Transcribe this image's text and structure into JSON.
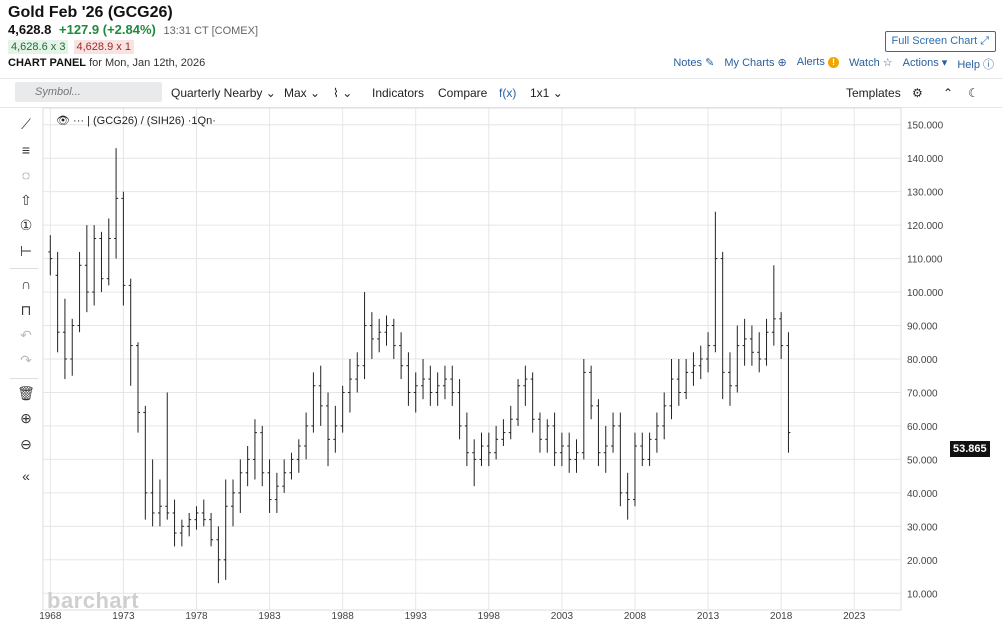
{
  "header": {
    "title": "Gold Feb '26 (GCG26)",
    "last": "4,628.8",
    "change": "+127.9 (+2.84%)",
    "time": "13:31 CT [COMEX]",
    "bid": "4,628.6 x 3",
    "ask": "4,628.9 x 1",
    "panel_label": "CHART PANEL",
    "panel_date": "for Mon, Jan 12th, 2026",
    "full_screen": "Full Screen Chart"
  },
  "links": {
    "notes": "Notes",
    "my_charts": "My Charts",
    "alerts": "Alerts",
    "alert_badge": "!",
    "watch": "Watch",
    "actions": "Actions",
    "help": "Help"
  },
  "toolbar": {
    "symbol_placeholder": "Symbol...",
    "aggregation": "Quarterly Nearby",
    "range": "Max",
    "chart_type_glyph": "⌇",
    "indicators": "Indicators",
    "compare": "Compare",
    "fx": "f(x)",
    "layout": "1x1",
    "templates": "Templates"
  },
  "chart_legend": "(GCG26) / (SIH26) ·1Qn·",
  "watermark": "barchart",
  "last_value_tag": "53.865",
  "colors": {
    "bars": "#222222",
    "grid": "#e6e6e6",
    "link": "#2a5f9e",
    "up": "#1f8a3b"
  },
  "chart_data": {
    "type": "ohlc",
    "title": "(GCG26) / (SIH26)",
    "ylim": [
      5,
      155
    ],
    "y_ticks": [
      10,
      20,
      30,
      40,
      50,
      60,
      70,
      80,
      90,
      100,
      110,
      120,
      130,
      140,
      150
    ],
    "y_tick_labels": [
      "10.000",
      "20.000",
      "30.000",
      "40.000",
      "50.000",
      "60.000",
      "70.000",
      "80.000",
      "90.000",
      "100.000",
      "110.000",
      "120.000",
      "130.000",
      "140.000",
      "150.000"
    ],
    "x_tick_labels": [
      "1968",
      "1973",
      "1978",
      "1983",
      "1988",
      "1993",
      "1998",
      "2003",
      "2008",
      "2013",
      "2018",
      "2023"
    ],
    "xlim": [
      1967.5,
      2026.2
    ],
    "points": [
      [
        1968.0,
        112,
        117,
        105,
        110
      ],
      [
        1968.5,
        105,
        112,
        82,
        88
      ],
      [
        1969.0,
        88,
        98,
        74,
        80
      ],
      [
        1969.5,
        80,
        92,
        75,
        90
      ],
      [
        1970.0,
        90,
        112,
        88,
        108
      ],
      [
        1970.5,
        108,
        120,
        94,
        100
      ],
      [
        1971.0,
        100,
        120,
        96,
        116
      ],
      [
        1971.5,
        116,
        118,
        100,
        104
      ],
      [
        1972.0,
        104,
        122,
        102,
        116
      ],
      [
        1972.5,
        116,
        143,
        110,
        128
      ],
      [
        1973.0,
        128,
        130,
        96,
        102
      ],
      [
        1973.5,
        102,
        104,
        72,
        84
      ],
      [
        1974.0,
        84,
        85,
        58,
        64
      ],
      [
        1974.5,
        64,
        66,
        32,
        40
      ],
      [
        1975.0,
        40,
        50,
        30,
        34
      ],
      [
        1975.5,
        34,
        44,
        30,
        36
      ],
      [
        1976.0,
        36,
        70,
        32,
        34
      ],
      [
        1976.5,
        34,
        38,
        24,
        28
      ],
      [
        1977.0,
        28,
        32,
        24,
        30
      ],
      [
        1977.5,
        30,
        34,
        27,
        32
      ],
      [
        1978.0,
        32,
        36,
        29,
        34
      ],
      [
        1978.5,
        34,
        38,
        30,
        32
      ],
      [
        1979.0,
        32,
        34,
        24,
        26
      ],
      [
        1979.5,
        26,
        30,
        13,
        20
      ],
      [
        1980.0,
        20,
        44,
        14,
        36
      ],
      [
        1980.5,
        36,
        44,
        30,
        40
      ],
      [
        1981.0,
        40,
        50,
        34,
        46
      ],
      [
        1981.5,
        46,
        54,
        42,
        50
      ],
      [
        1982.0,
        50,
        62,
        44,
        58
      ],
      [
        1982.5,
        58,
        60,
        42,
        46
      ],
      [
        1983.0,
        46,
        50,
        34,
        38
      ],
      [
        1983.5,
        38,
        46,
        34,
        42
      ],
      [
        1984.0,
        42,
        50,
        40,
        46
      ],
      [
        1984.5,
        46,
        52,
        44,
        50
      ],
      [
        1985.0,
        50,
        56,
        46,
        54
      ],
      [
        1985.5,
        54,
        64,
        50,
        60
      ],
      [
        1986.0,
        60,
        76,
        58,
        72
      ],
      [
        1986.5,
        72,
        78,
        60,
        66
      ],
      [
        1987.0,
        66,
        70,
        48,
        56
      ],
      [
        1987.5,
        56,
        66,
        52,
        60
      ],
      [
        1988.0,
        60,
        72,
        58,
        70
      ],
      [
        1988.5,
        70,
        80,
        64,
        74
      ],
      [
        1989.0,
        74,
        82,
        70,
        78
      ],
      [
        1989.5,
        78,
        100,
        74,
        90
      ],
      [
        1990.0,
        90,
        94,
        80,
        86
      ],
      [
        1990.5,
        86,
        92,
        82,
        88
      ],
      [
        1991.0,
        88,
        93,
        84,
        90
      ],
      [
        1991.5,
        90,
        92,
        80,
        84
      ],
      [
        1992.0,
        84,
        88,
        74,
        78
      ],
      [
        1992.5,
        78,
        82,
        66,
        70
      ],
      [
        1993.0,
        70,
        76,
        64,
        72
      ],
      [
        1993.5,
        72,
        80,
        68,
        74
      ],
      [
        1994.0,
        74,
        78,
        66,
        70
      ],
      [
        1994.5,
        70,
        76,
        66,
        72
      ],
      [
        1995.0,
        72,
        78,
        68,
        74
      ],
      [
        1995.5,
        74,
        78,
        66,
        70
      ],
      [
        1996.0,
        70,
        74,
        56,
        60
      ],
      [
        1996.5,
        60,
        64,
        48,
        52
      ],
      [
        1997.0,
        52,
        56,
        42,
        50
      ],
      [
        1997.5,
        50,
        58,
        48,
        54
      ],
      [
        1998.0,
        54,
        58,
        48,
        52
      ],
      [
        1998.5,
        52,
        60,
        50,
        56
      ],
      [
        1999.0,
        56,
        62,
        54,
        58
      ],
      [
        1999.5,
        58,
        66,
        56,
        62
      ],
      [
        2000.0,
        62,
        74,
        60,
        72
      ],
      [
        2000.5,
        72,
        78,
        66,
        74
      ],
      [
        2001.0,
        74,
        76,
        58,
        62
      ],
      [
        2001.5,
        62,
        64,
        52,
        56
      ],
      [
        2002.0,
        56,
        62,
        52,
        60
      ],
      [
        2002.5,
        60,
        64,
        48,
        52
      ],
      [
        2003.0,
        52,
        58,
        48,
        54
      ],
      [
        2003.5,
        54,
        58,
        46,
        50
      ],
      [
        2004.0,
        50,
        56,
        46,
        52
      ],
      [
        2004.5,
        52,
        80,
        50,
        76
      ],
      [
        2005.0,
        76,
        78,
        62,
        66
      ],
      [
        2005.5,
        66,
        68,
        48,
        52
      ],
      [
        2006.0,
        52,
        60,
        46,
        54
      ],
      [
        2006.5,
        54,
        64,
        52,
        60
      ],
      [
        2007.0,
        60,
        64,
        36,
        40
      ],
      [
        2007.5,
        40,
        46,
        32,
        38
      ],
      [
        2008.0,
        38,
        58,
        36,
        54
      ],
      [
        2008.5,
        54,
        58,
        48,
        50
      ],
      [
        2009.0,
        50,
        58,
        48,
        56
      ],
      [
        2009.5,
        56,
        64,
        52,
        60
      ],
      [
        2010.0,
        60,
        70,
        56,
        66
      ],
      [
        2010.5,
        66,
        80,
        62,
        74
      ],
      [
        2011.0,
        74,
        80,
        66,
        70
      ],
      [
        2011.5,
        70,
        80,
        68,
        76
      ],
      [
        2012.0,
        76,
        82,
        72,
        78
      ],
      [
        2012.5,
        78,
        84,
        74,
        80
      ],
      [
        2013.0,
        80,
        88,
        76,
        84
      ],
      [
        2013.5,
        84,
        124,
        82,
        110
      ],
      [
        2014.0,
        110,
        112,
        68,
        76
      ],
      [
        2014.5,
        76,
        82,
        66,
        72
      ],
      [
        2015.0,
        72,
        90,
        70,
        84
      ],
      [
        2015.5,
        84,
        92,
        78,
        86
      ],
      [
        2016.0,
        86,
        90,
        78,
        82
      ],
      [
        2016.5,
        82,
        88,
        76,
        80
      ],
      [
        2017.0,
        80,
        92,
        78,
        88
      ],
      [
        2017.5,
        88,
        108,
        84,
        92
      ],
      [
        2018.0,
        92,
        94,
        80,
        84
      ],
      [
        2018.5,
        84,
        88,
        52,
        58
      ]
    ]
  }
}
